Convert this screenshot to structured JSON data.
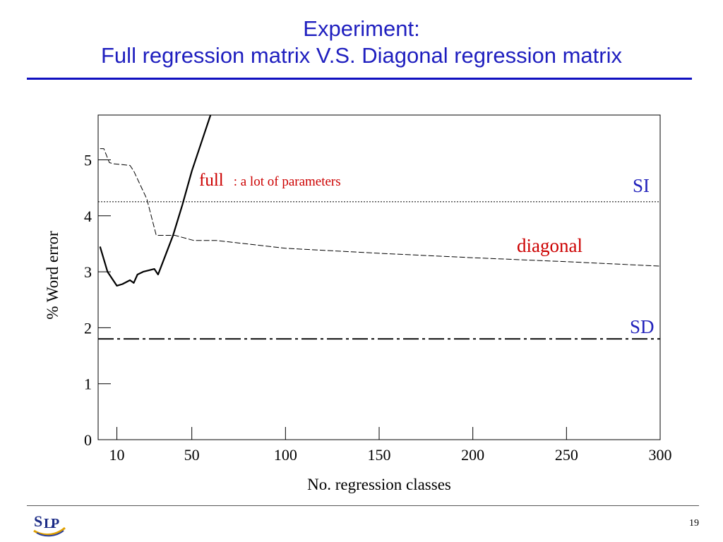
{
  "slide": {
    "title_line1": "Experiment:",
    "title_line2": "Full regression matrix V.S. Diagonal regression matrix",
    "page_number": "19",
    "logo_text": "SLP",
    "title_color": "#1f1fbf"
  },
  "chart_data": {
    "type": "line",
    "title": "",
    "xlabel": "No. regression classes",
    "ylabel": "% Word error",
    "xlim": [
      0,
      300
    ],
    "ylim": [
      0,
      5.8
    ],
    "x_ticks": [
      10,
      50,
      100,
      150,
      200,
      250,
      300
    ],
    "y_ticks": [
      0,
      1,
      2,
      3,
      4,
      5
    ],
    "grid": false,
    "series": [
      {
        "name": "full",
        "style": "solid-bold",
        "color": "#000000",
        "x": [
          1,
          5,
          10,
          13,
          17,
          19,
          21,
          24,
          30,
          32,
          36,
          40,
          45,
          50,
          56,
          60
        ],
        "y": [
          3.45,
          3.0,
          2.75,
          2.78,
          2.85,
          2.8,
          2.95,
          3.0,
          3.05,
          2.95,
          3.3,
          3.65,
          4.2,
          4.8,
          5.4,
          5.8
        ]
      },
      {
        "name": "diagonal",
        "style": "dashed",
        "color": "#000000",
        "x": [
          1,
          3,
          6,
          8,
          11,
          17,
          19,
          26,
          31,
          41,
          51,
          63,
          100,
          150,
          200,
          250,
          300
        ],
        "y": [
          5.2,
          5.2,
          4.95,
          4.93,
          4.92,
          4.9,
          4.8,
          4.3,
          3.65,
          3.65,
          3.56,
          3.56,
          3.42,
          3.33,
          3.25,
          3.18,
          3.1
        ]
      },
      {
        "name": "SI",
        "style": "dotted-horizontal",
        "color": "#000000",
        "x": [
          0,
          300
        ],
        "y": [
          4.25,
          4.25
        ]
      },
      {
        "name": "SD",
        "style": "dashdot-horizontal",
        "color": "#000000",
        "x": [
          0,
          300
        ],
        "y": [
          1.8,
          1.8
        ]
      }
    ],
    "annotations": [
      {
        "text_main": "full",
        "text_note": ": a lot of parameters",
        "color": "#cc0000"
      },
      {
        "text": "diagonal",
        "color": "#cc0000"
      },
      {
        "text": "SI",
        "color": "#2222bb"
      },
      {
        "text": "SD",
        "color": "#2222bb"
      }
    ]
  }
}
